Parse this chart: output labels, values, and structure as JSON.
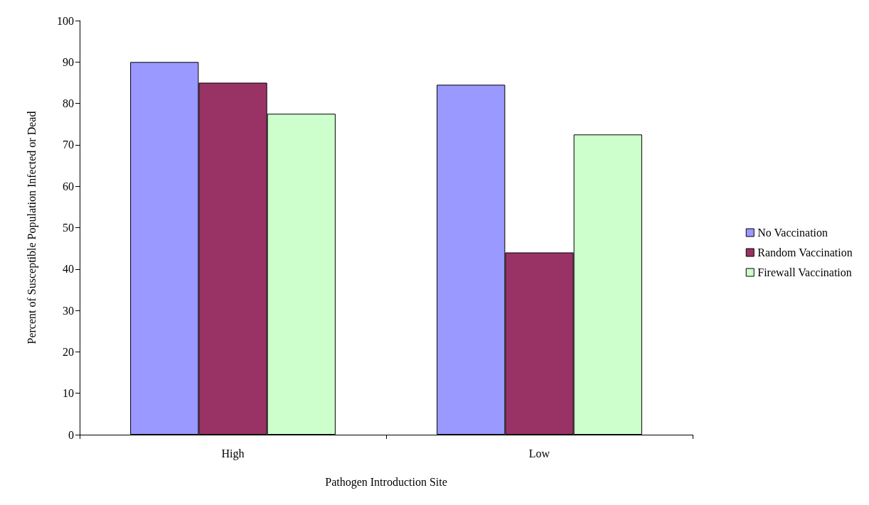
{
  "chart_data": {
    "type": "bar",
    "xlabel": "Pathogen Introduction Site",
    "ylabel": "Percent of Susceptible Population Infected or Dead",
    "categories": [
      "High",
      "Low"
    ],
    "series": [
      {
        "name": "No Vaccination",
        "color": "#9999ff",
        "values": [
          90,
          84.5
        ]
      },
      {
        "name": "Random Vaccination",
        "color": "#993366",
        "values": [
          85,
          44
        ]
      },
      {
        "name": "Firewall Vaccination",
        "color": "#ccffcc",
        "values": [
          77.5,
          72.5
        ]
      }
    ],
    "ylim": [
      0,
      100
    ],
    "yticks": [
      0,
      10,
      20,
      30,
      40,
      50,
      60,
      70,
      80,
      90,
      100
    ],
    "grid": false,
    "legend": "right"
  }
}
